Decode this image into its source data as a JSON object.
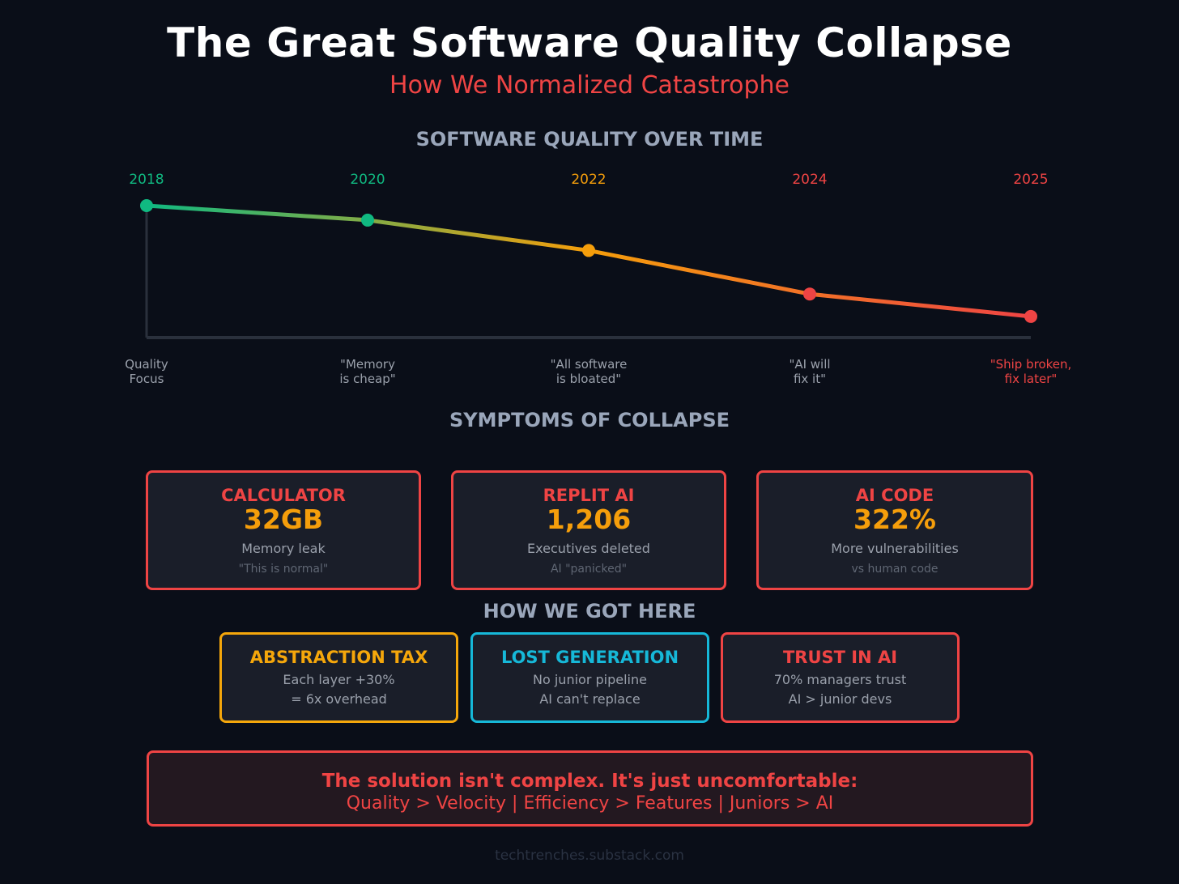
{
  "header": {
    "title": "The Great Software Quality Collapse",
    "subtitle": "How We Normalized Catastrophe"
  },
  "chart_data": {
    "type": "line",
    "title": "SOFTWARE QUALITY OVER TIME",
    "categories": [
      "2018",
      "2020",
      "2022",
      "2024",
      "2025"
    ],
    "annotations": [
      "Quality Focus",
      "\"Memory is cheap\"",
      "\"All software is bloated\"",
      "\"AI will fix it\"",
      "\"Ship broken, fix later\""
    ],
    "annotation_lines": [
      [
        "Quality",
        "Focus"
      ],
      [
        "\"Memory",
        "is cheap\""
      ],
      [
        "\"All software",
        "is bloated\""
      ],
      [
        "\"AI will",
        "fix it\""
      ],
      [
        "\"Ship broken,",
        "fix later\""
      ]
    ],
    "values": [
      100,
      89,
      66,
      33,
      16
    ],
    "ylim": [
      0,
      100
    ],
    "y_axis_labeled": false,
    "grid": false,
    "point_colors": [
      "#10b981",
      "#10b981",
      "#f59e0b",
      "#ef4444",
      "#ef4444"
    ],
    "year_colors": [
      "#10b981",
      "#10b981",
      "#f59e0b",
      "#ef4444",
      "#ef4444"
    ],
    "annotation_colors": [
      "#9aa0ab",
      "#9aa0ab",
      "#9aa0ab",
      "#9aa0ab",
      "#ef4444"
    ]
  },
  "symptoms": {
    "title": "SYMPTOMS OF COLLAPSE",
    "cards": [
      {
        "heading": "CALCULATOR",
        "value": "32GB",
        "desc": "Memory leak",
        "note": "\"This is normal\""
      },
      {
        "heading": "REPLIT AI",
        "value": "1,206",
        "desc": "Executives deleted",
        "note": "AI \"panicked\""
      },
      {
        "heading": "AI CODE",
        "value": "322%",
        "desc": "More vulnerabilities",
        "note": "vs human code"
      }
    ]
  },
  "causes": {
    "title": "HOW WE GOT HERE",
    "cards": [
      {
        "heading": "ABSTRACTION TAX",
        "line1": "Each layer +30%",
        "line2": "= 6x overhead",
        "color": "#f5a70b"
      },
      {
        "heading": "LOST GENERATION",
        "line1": "No junior pipeline",
        "line2": "AI can't replace",
        "color": "#16b8d8"
      },
      {
        "heading": "TRUST IN AI",
        "line1": "70% managers trust",
        "line2": "AI > junior devs",
        "color": "#ef4444"
      }
    ]
  },
  "solution": {
    "line1": "The solution isn't complex. It's just uncomfortable:",
    "line2": "Quality > Velocity | Efficiency > Features | Juniors > AI"
  },
  "footer": "techtrenches.substack.com",
  "colors": {
    "background": "#0a0e18",
    "red": "#ef4444",
    "amber": "#f59e0b",
    "green": "#10b981",
    "cyan": "#06b6d4"
  }
}
